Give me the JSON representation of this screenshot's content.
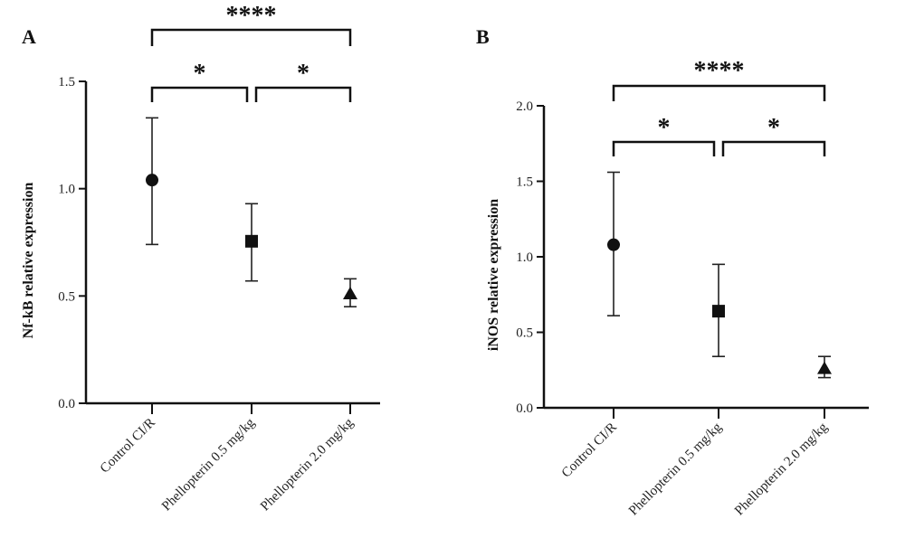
{
  "chart_data": [
    {
      "type": "scatter",
      "panel_label": "A",
      "ylabel": "Nf-kB relative expression",
      "ylim": [
        0,
        1.5
      ],
      "yticks": [
        "0.0",
        "0.5",
        "1.0",
        "1.5"
      ],
      "categories": [
        "Control CI/R",
        "Phellopterin 0.5 mg/kg",
        "Phellopterin 2.0 mg/kg"
      ],
      "markers": [
        "circle",
        "square",
        "triangle"
      ],
      "values": [
        1.04,
        0.755,
        0.51
      ],
      "error_low": [
        0.74,
        0.57,
        0.45
      ],
      "error_high": [
        1.33,
        0.93,
        0.58
      ],
      "significance": [
        {
          "from": 0,
          "to": 2,
          "label": "****"
        },
        {
          "from": 0,
          "to": 1,
          "label": "*"
        },
        {
          "from": 1,
          "to": 2,
          "label": "*"
        }
      ],
      "grid": false
    },
    {
      "type": "scatter",
      "panel_label": "B",
      "ylabel": "iNOS relative expression",
      "ylim": [
        0,
        2.0
      ],
      "yticks": [
        "0.0",
        "0.5",
        "1.0",
        "1.5",
        "2.0"
      ],
      "categories": [
        "Control CI/R",
        "Phellopterin 0.5 mg/kg",
        "Phellopterin 2.0 mg/kg"
      ],
      "markers": [
        "circle",
        "square",
        "triangle"
      ],
      "values": [
        1.08,
        0.64,
        0.26
      ],
      "error_low": [
        0.61,
        0.34,
        0.2
      ],
      "error_high": [
        1.56,
        0.95,
        0.34
      ],
      "significance": [
        {
          "from": 0,
          "to": 2,
          "label": "****"
        },
        {
          "from": 0,
          "to": 1,
          "label": "*"
        },
        {
          "from": 1,
          "to": 2,
          "label": "*"
        }
      ],
      "grid": false
    }
  ]
}
